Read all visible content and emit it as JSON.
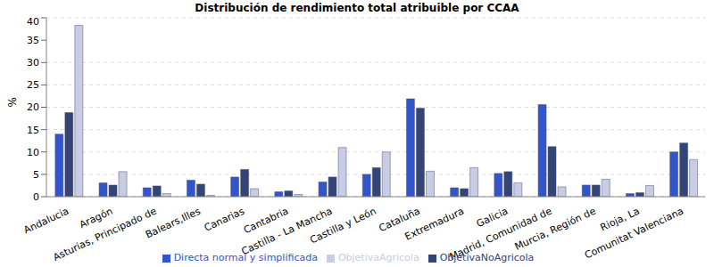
{
  "chart_data": {
    "type": "bar",
    "title": "Distribución de rendimiento total atribuible por CCAA",
    "y_label": "%",
    "categories": [
      "Andalucia",
      "Aragón",
      "Asturias, Principado de",
      "Balears,Illes",
      "Canarias",
      "Cantabria",
      "Castilla - La Mancha",
      "Castilla y León",
      "Cataluña",
      "Extremadura",
      "Galicia",
      "Madrid, Comunidad de",
      "Murcia, Región de",
      "Rioja, La",
      "Comunitat Valenciana"
    ],
    "series": [
      {
        "name": "Directa normal y simplificada",
        "color": "#3355cc",
        "values": [
          14.0,
          3.1,
          2.0,
          3.7,
          4.4,
          1.1,
          3.3,
          5.0,
          21.9,
          2.0,
          5.2,
          20.6,
          2.6,
          0.7,
          10.0
        ]
      },
      {
        "name": "ObjetivaNoAgricola",
        "color": "#334477",
        "values": [
          18.8,
          2.6,
          2.4,
          2.8,
          6.1,
          1.3,
          4.4,
          6.5,
          19.8,
          1.8,
          5.6,
          11.2,
          2.6,
          0.9,
          12.0
        ]
      },
      {
        "name": "ObjetivaAgricola",
        "color": "#c8cce6",
        "values": [
          38.3,
          5.6,
          0.7,
          0.3,
          1.8,
          0.5,
          11.0,
          10.0,
          5.7,
          6.5,
          3.1,
          2.2,
          3.9,
          2.5,
          8.3
        ]
      }
    ],
    "ylim": [
      0,
      40
    ],
    "yticks": [
      0,
      5,
      10,
      15,
      20,
      25,
      30,
      35,
      40
    ],
    "grid": true,
    "legend": "bottom"
  }
}
